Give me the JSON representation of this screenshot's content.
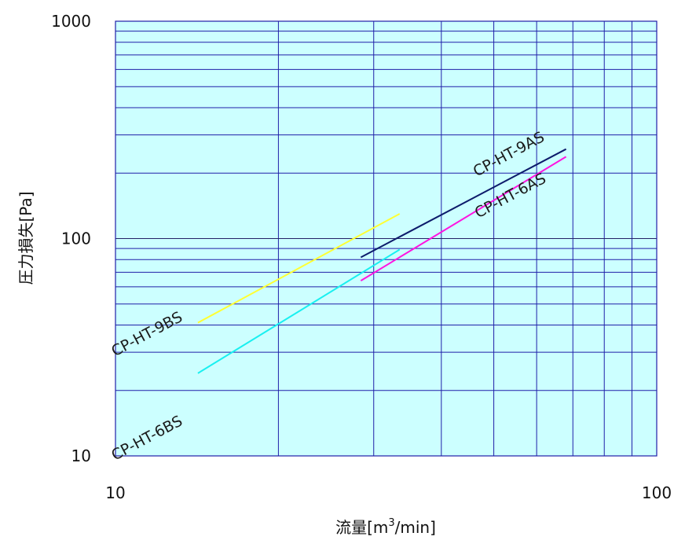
{
  "chart_data": {
    "type": "line",
    "x_scale": "log",
    "y_scale": "log",
    "xlim": [
      10,
      100
    ],
    "ylim": [
      10,
      1000
    ],
    "x_ticks": [
      "10",
      "100"
    ],
    "y_ticks": [
      "10",
      "100",
      "1000"
    ],
    "xlabel": {
      "main": "流量[m",
      "sup": "3",
      "tail": "/min]"
    },
    "ylabel": "圧力損失[Pa]",
    "grid": true,
    "plot_background": "#ccffff",
    "grid_color": "#1f1fa8",
    "series": [
      {
        "name": "CP-HT-9BS",
        "color": "#ffff33",
        "x": [
          14.2,
          33.5
        ],
        "y": [
          41,
          130
        ]
      },
      {
        "name": "CP-HT-6BS",
        "color": "#19f0f0",
        "x": [
          14.2,
          33.5
        ],
        "y": [
          24,
          89
        ]
      },
      {
        "name": "CP-HT-9AS",
        "color": "#0d1b6b",
        "x": [
          28.4,
          68
        ],
        "y": [
          82,
          258
        ]
      },
      {
        "name": "CP-HT-6AS",
        "color": "#ff14e0",
        "x": [
          28.4,
          68
        ],
        "y": [
          64,
          238
        ]
      }
    ]
  }
}
